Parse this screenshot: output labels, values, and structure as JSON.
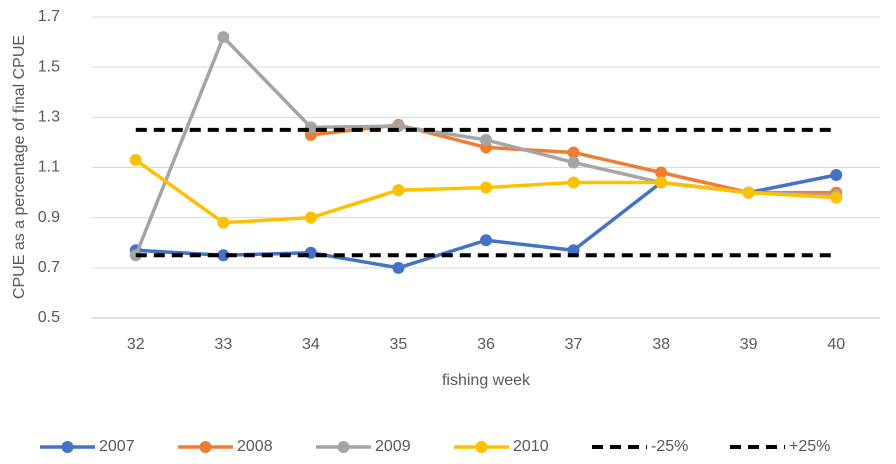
{
  "chart_data": {
    "type": "line",
    "x_label": "fishing week",
    "y_label": "CPUE as a percentage of final CPUE",
    "categories": [
      32,
      33,
      34,
      35,
      36,
      37,
      38,
      39,
      40
    ],
    "ylim": [
      0.5,
      1.7
    ],
    "yticks": [
      0.5,
      0.7,
      0.9,
      1.1,
      1.3,
      1.5,
      1.7
    ],
    "grid": true,
    "legend": "bottom",
    "series": [
      {
        "name": "2007",
        "color": "#4472c4",
        "markers": true,
        "values": [
          0.77,
          0.75,
          0.76,
          0.7,
          0.81,
          0.77,
          1.04,
          1.0,
          1.07
        ]
      },
      {
        "name": "2008",
        "color": "#ed7d31",
        "markers": true,
        "values": [
          null,
          null,
          1.23,
          1.27,
          1.18,
          1.16,
          1.08,
          1.0,
          1.0
        ]
      },
      {
        "name": "2009",
        "color": "#a5a5a5",
        "markers": true,
        "values": [
          0.75,
          1.62,
          1.26,
          1.265,
          1.21,
          1.12,
          1.04,
          1.0,
          0.99
        ]
      },
      {
        "name": "2010",
        "color": "#ffc000",
        "markers": true,
        "values": [
          1.13,
          0.88,
          0.9,
          1.01,
          1.02,
          1.04,
          1.04,
          1.0,
          0.98
        ]
      },
      {
        "name": "-25%",
        "color": "#000000",
        "dashed": true,
        "values": [
          0.75,
          0.75,
          0.75,
          0.75,
          0.75,
          0.75,
          0.75,
          0.75,
          0.75
        ]
      },
      {
        "name": "+25%",
        "color": "#000000",
        "dashed": true,
        "values": [
          1.25,
          1.25,
          1.25,
          1.25,
          1.25,
          1.25,
          1.25,
          1.25,
          1.25
        ]
      }
    ]
  }
}
